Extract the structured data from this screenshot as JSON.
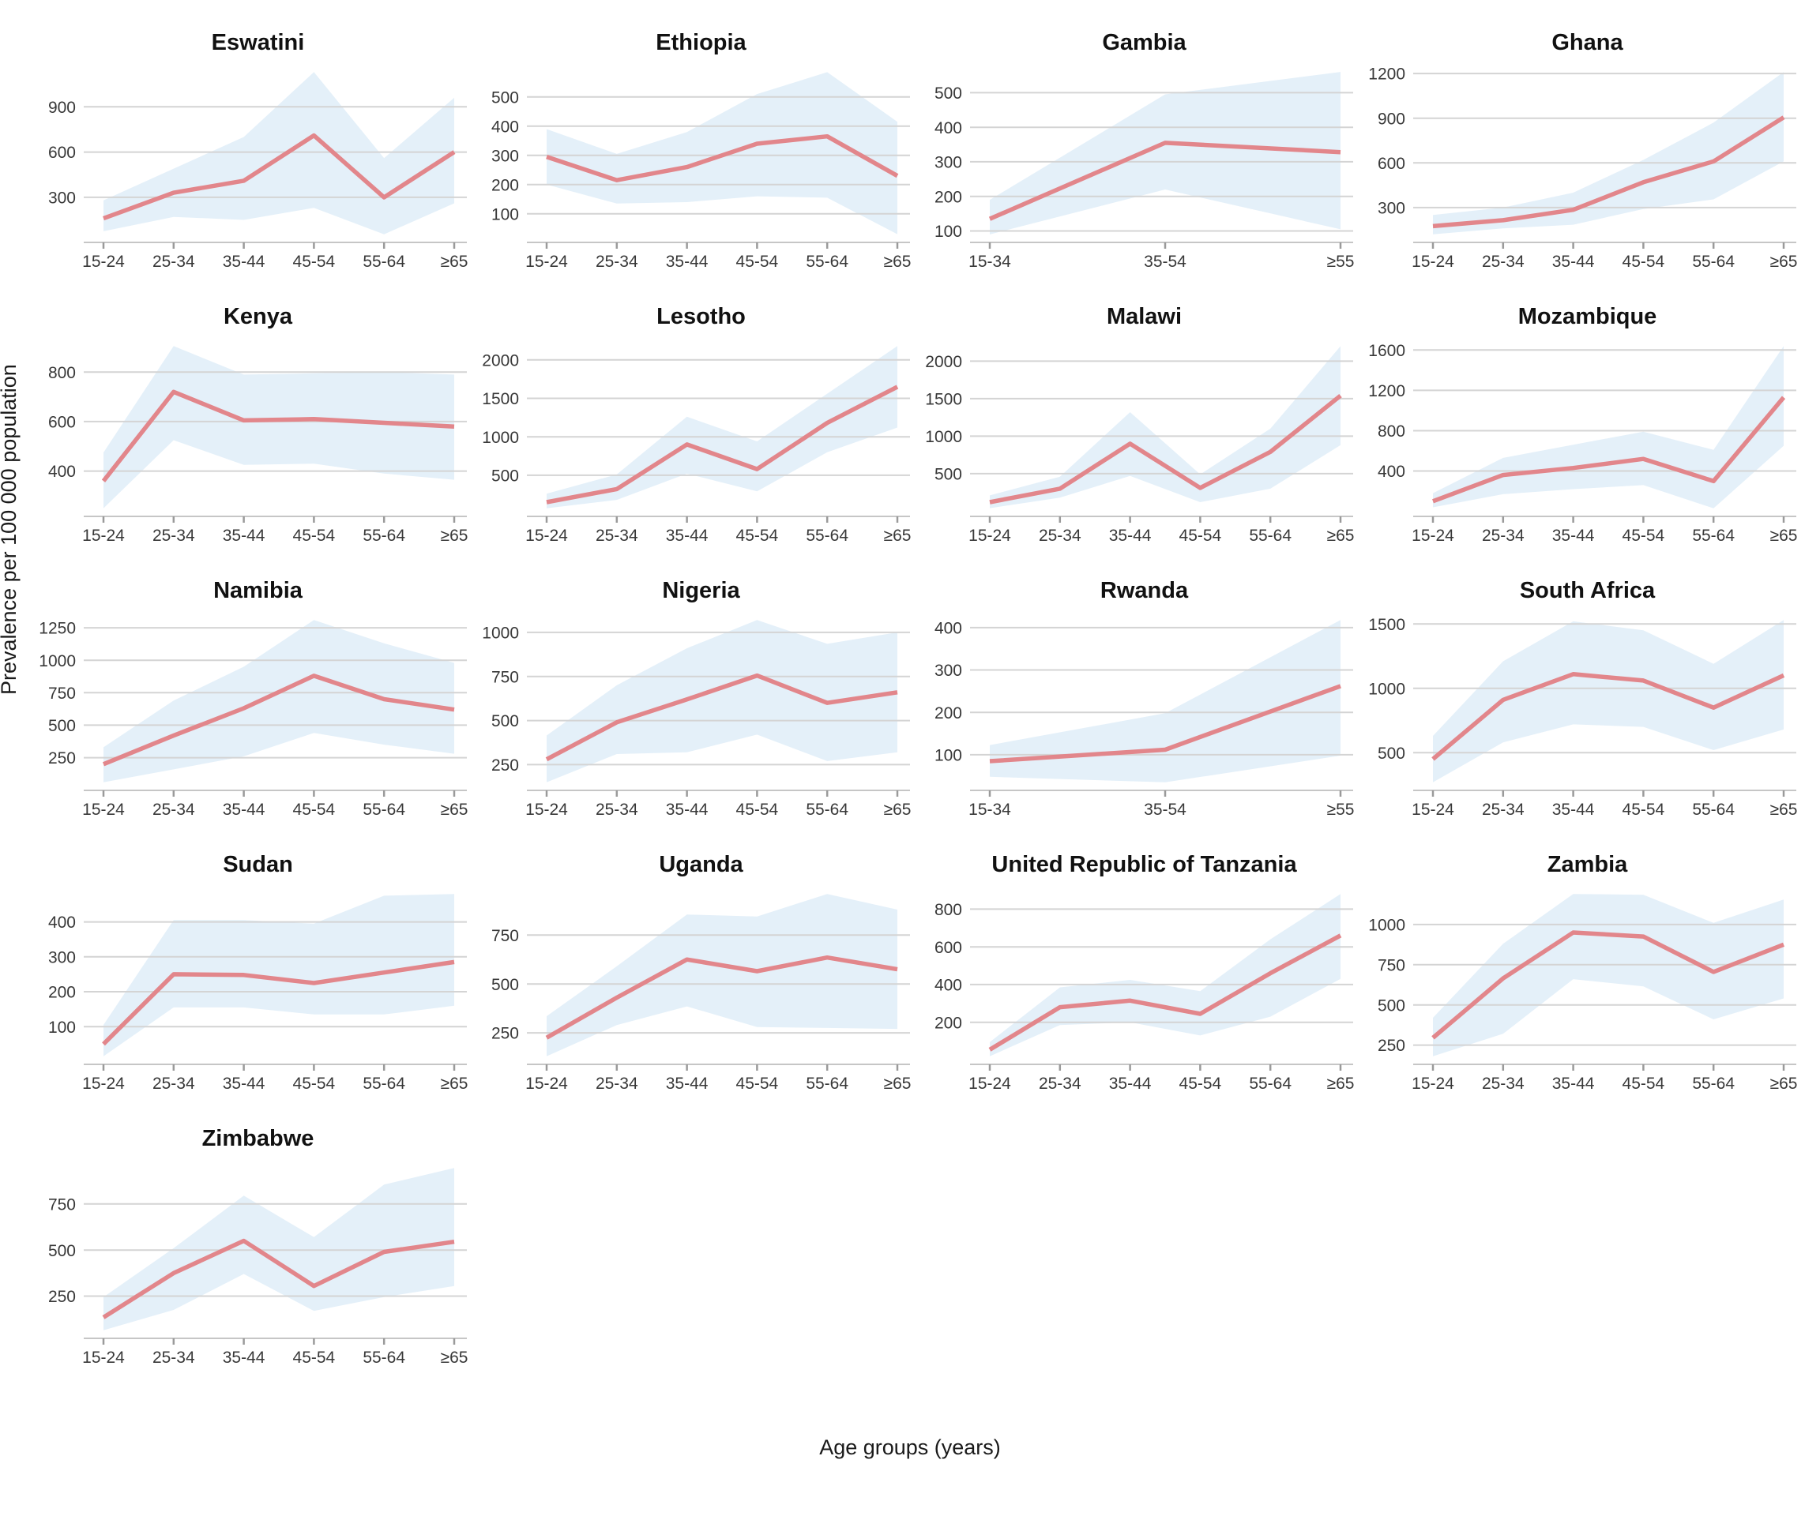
{
  "page": {
    "ylabel": "Prevalence per 100 000 population",
    "xlabel": "Age groups (years)"
  },
  "style": {
    "line_color": "#e2868b",
    "band_color": "#e4f0f9",
    "grid_color": "#d4d4d4",
    "axis_line_color": "#c6c6c6",
    "tick_mark_color": "#9a9a9a",
    "tick_label_color": "#383838",
    "title_color": "#111111",
    "background": "#ffffff"
  },
  "chart_data": [
    {
      "type": "line",
      "title": "Eswatini",
      "categories": [
        "15-24",
        "25-34",
        "35-44",
        "45-54",
        "55-64",
        "≥65"
      ],
      "yticks": [
        300,
        600,
        900
      ],
      "ylim": [
        1,
        1184
      ],
      "series": [
        {
          "name": "prevalence",
          "values": [
            160,
            330,
            410,
            710,
            300,
            600
          ]
        },
        {
          "name": "lower_ci",
          "values": [
            75,
            170,
            150,
            230,
            55,
            260
          ]
        },
        {
          "name": "upper_ci",
          "values": [
            280,
            490,
            700,
            1130,
            560,
            960
          ]
        }
      ]
    },
    {
      "type": "line",
      "title": "Ethiopia",
      "categories": [
        "15-24",
        "25-34",
        "35-44",
        "45-54",
        "55-64",
        "≥65"
      ],
      "yticks": [
        100,
        200,
        300,
        400,
        500
      ],
      "ylim": [
        2,
        613
      ],
      "series": [
        {
          "name": "prevalence",
          "values": [
            295,
            215,
            260,
            340,
            365,
            230
          ]
        },
        {
          "name": "lower_ci",
          "values": [
            200,
            135,
            140,
            160,
            155,
            30
          ]
        },
        {
          "name": "upper_ci",
          "values": [
            390,
            305,
            380,
            510,
            585,
            415
          ]
        }
      ]
    },
    {
      "type": "line",
      "title": "Gambia",
      "categories": [
        "15-34",
        "35-54",
        "≥55"
      ],
      "yticks": [
        100,
        200,
        300,
        400,
        500
      ],
      "ylim": [
        67,
        583
      ],
      "series": [
        {
          "name": "prevalence",
          "values": [
            135,
            355,
            328
          ]
        },
        {
          "name": "lower_ci",
          "values": [
            90,
            220,
            105
          ]
        },
        {
          "name": "upper_ci",
          "values": [
            190,
            495,
            560
          ]
        }
      ]
    },
    {
      "type": "line",
      "title": "Ghana",
      "categories": [
        "15-24",
        "25-34",
        "35-44",
        "45-54",
        "55-64",
        "≥65"
      ],
      "yticks": [
        300,
        600,
        900,
        1200
      ],
      "ylim": [
        66,
        1264
      ],
      "series": [
        {
          "name": "prevalence",
          "values": [
            175,
            215,
            285,
            470,
            610,
            905
          ]
        },
        {
          "name": "lower_ci",
          "values": [
            120,
            160,
            185,
            290,
            355,
            610
          ]
        },
        {
          "name": "upper_ci",
          "values": [
            250,
            300,
            400,
            620,
            870,
            1210
          ]
        }
      ]
    },
    {
      "type": "line",
      "title": "Kenya",
      "categories": [
        "15-24",
        "25-34",
        "35-44",
        "45-54",
        "55-64",
        "≥65"
      ],
      "yticks": [
        400,
        600,
        800
      ],
      "ylim": [
        217,
        938
      ],
      "series": [
        {
          "name": "prevalence",
          "values": [
            360,
            720,
            605,
            610,
            595,
            580
          ]
        },
        {
          "name": "lower_ci",
          "values": [
            250,
            525,
            425,
            430,
            390,
            365
          ]
        },
        {
          "name": "upper_ci",
          "values": [
            475,
            905,
            790,
            795,
            800,
            790
          ]
        }
      ]
    },
    {
      "type": "line",
      "title": "Lesotho",
      "categories": [
        "15-24",
        "25-34",
        "35-44",
        "45-54",
        "55-64",
        "≥65"
      ],
      "yticks": [
        500,
        1000,
        1500,
        2000
      ],
      "ylim": [
        -35,
        2285
      ],
      "series": [
        {
          "name": "prevalence",
          "values": [
            150,
            320,
            900,
            580,
            1180,
            1650
          ]
        },
        {
          "name": "lower_ci",
          "values": [
            70,
            180,
            520,
            290,
            800,
            1120
          ]
        },
        {
          "name": "upper_ci",
          "values": [
            260,
            510,
            1260,
            940,
            1560,
            2180
          ]
        }
      ]
    },
    {
      "type": "line",
      "title": "Malawi",
      "categories": [
        "15-24",
        "25-34",
        "35-44",
        "45-54",
        "55-64",
        "≥65"
      ],
      "yticks": [
        500,
        1000,
        1500,
        2000
      ],
      "ylim": [
        -70,
        2310
      ],
      "series": [
        {
          "name": "prevalence",
          "values": [
            120,
            300,
            900,
            310,
            790,
            1540
          ]
        },
        {
          "name": "lower_ci",
          "values": [
            40,
            180,
            470,
            120,
            300,
            880
          ]
        },
        {
          "name": "upper_ci",
          "values": [
            210,
            460,
            1320,
            490,
            1100,
            2200
          ]
        }
      ]
    },
    {
      "type": "line",
      "title": "Mozambique",
      "categories": [
        "15-24",
        "25-34",
        "35-44",
        "45-54",
        "55-64",
        "≥65"
      ],
      "yticks": [
        400,
        800,
        1200,
        1600
      ],
      "ylim": [
        -50,
        1720
      ],
      "series": [
        {
          "name": "prevalence",
          "values": [
            100,
            360,
            430,
            520,
            300,
            1130
          ]
        },
        {
          "name": "lower_ci",
          "values": [
            40,
            170,
            220,
            260,
            30,
            650
          ]
        },
        {
          "name": "upper_ci",
          "values": [
            180,
            530,
            660,
            790,
            610,
            1640
          ]
        }
      ]
    },
    {
      "type": "line",
      "title": "Namibia",
      "categories": [
        "15-24",
        "25-34",
        "35-44",
        "45-54",
        "55-64",
        "≥65"
      ],
      "yticks": [
        250,
        500,
        750,
        1000,
        1250
      ],
      "ylim": [
        -2,
        1372
      ],
      "series": [
        {
          "name": "prevalence",
          "values": [
            200,
            420,
            630,
            880,
            700,
            620
          ]
        },
        {
          "name": "lower_ci",
          "values": [
            60,
            160,
            260,
            440,
            350,
            280
          ]
        },
        {
          "name": "upper_ci",
          "values": [
            330,
            690,
            950,
            1310,
            1130,
            980
          ]
        }
      ]
    },
    {
      "type": "line",
      "title": "Nigeria",
      "categories": [
        "15-24",
        "25-34",
        "35-44",
        "45-54",
        "55-64",
        "≥65"
      ],
      "yticks": [
        250,
        500,
        750,
        1000
      ],
      "ylim": [
        104,
        1116
      ],
      "series": [
        {
          "name": "prevalence",
          "values": [
            280,
            490,
            620,
            755,
            600,
            660
          ]
        },
        {
          "name": "lower_ci",
          "values": [
            150,
            310,
            320,
            420,
            270,
            320
          ]
        },
        {
          "name": "upper_ci",
          "values": [
            415,
            700,
            910,
            1070,
            935,
            1000
          ]
        }
      ]
    },
    {
      "type": "line",
      "title": "Rwanda",
      "categories": [
        "15-34",
        "35-54",
        "≥55"
      ],
      "yticks": [
        100,
        200,
        300,
        400
      ],
      "ylim": [
        16,
        437
      ],
      "series": [
        {
          "name": "prevalence",
          "values": [
            85,
            112,
            262
          ]
        },
        {
          "name": "lower_ci",
          "values": [
            48,
            35,
            98
          ]
        },
        {
          "name": "upper_ci",
          "values": [
            123,
            198,
            418
          ]
        }
      ]
    },
    {
      "type": "line",
      "title": "South Africa",
      "categories": [
        "15-24",
        "25-34",
        "35-44",
        "45-54",
        "55-64",
        "≥65"
      ],
      "yticks": [
        500,
        1000,
        1500
      ],
      "ylim": [
        207,
        1593
      ],
      "series": [
        {
          "name": "prevalence",
          "values": [
            450,
            910,
            1110,
            1060,
            850,
            1100
          ]
        },
        {
          "name": "lower_ci",
          "values": [
            270,
            580,
            720,
            700,
            520,
            680
          ]
        },
        {
          "name": "upper_ci",
          "values": [
            630,
            1210,
            1520,
            1450,
            1190,
            1530
          ]
        }
      ]
    },
    {
      "type": "line",
      "title": "Sudan",
      "categories": [
        "15-24",
        "25-34",
        "35-44",
        "45-54",
        "55-64",
        "≥65"
      ],
      "yticks": [
        100,
        200,
        300,
        400
      ],
      "ylim": [
        -8,
        503
      ],
      "series": [
        {
          "name": "prevalence",
          "values": [
            50,
            250,
            248,
            225,
            255,
            285
          ]
        },
        {
          "name": "lower_ci",
          "values": [
            15,
            155,
            155,
            135,
            135,
            160
          ]
        },
        {
          "name": "upper_ci",
          "values": [
            105,
            405,
            405,
            395,
            475,
            480
          ]
        }
      ]
    },
    {
      "type": "line",
      "title": "Uganda",
      "categories": [
        "15-24",
        "25-34",
        "35-44",
        "45-54",
        "55-64",
        "≥65"
      ],
      "yticks": [
        250,
        500,
        750
      ],
      "ylim": [
        89,
        1001
      ],
      "series": [
        {
          "name": "prevalence",
          "values": [
            225,
            430,
            625,
            565,
            635,
            575
          ]
        },
        {
          "name": "lower_ci",
          "values": [
            130,
            290,
            385,
            280,
            275,
            270
          ]
        },
        {
          "name": "upper_ci",
          "values": [
            335,
            590,
            855,
            845,
            960,
            880
          ]
        }
      ]
    },
    {
      "type": "line",
      "title": "United Republic of Tanzania",
      "categories": [
        "15-24",
        "25-34",
        "35-44",
        "45-54",
        "55-64",
        "≥65"
      ],
      "yticks": [
        200,
        400,
        600,
        800
      ],
      "ylim": [
        -23,
        923
      ],
      "series": [
        {
          "name": "prevalence",
          "values": [
            55,
            280,
            315,
            245,
            460,
            660
          ]
        },
        {
          "name": "lower_ci",
          "values": [
            20,
            185,
            200,
            130,
            230,
            430
          ]
        },
        {
          "name": "upper_ci",
          "values": [
            95,
            385,
            425,
            365,
            640,
            880
          ]
        }
      ]
    },
    {
      "type": "line",
      "title": "Zambia",
      "categories": [
        "15-24",
        "25-34",
        "35-44",
        "45-54",
        "55-64",
        "≥65"
      ],
      "yticks": [
        250,
        500,
        750,
        1000
      ],
      "ylim": [
        130,
        1240
      ],
      "series": [
        {
          "name": "prevalence",
          "values": [
            295,
            665,
            950,
            925,
            705,
            875
          ]
        },
        {
          "name": "lower_ci",
          "values": [
            180,
            320,
            660,
            615,
            410,
            540
          ]
        },
        {
          "name": "upper_ci",
          "values": [
            420,
            880,
            1190,
            1185,
            1010,
            1155
          ]
        }
      ]
    },
    {
      "type": "line",
      "title": "Zimbabwe",
      "categories": [
        "15-24",
        "25-34",
        "35-44",
        "45-54",
        "55-64",
        "≥65"
      ],
      "yticks": [
        250,
        500,
        750
      ],
      "ylim": [
        21,
        989
      ],
      "series": [
        {
          "name": "prevalence",
          "values": [
            135,
            375,
            550,
            305,
            490,
            545
          ]
        },
        {
          "name": "lower_ci",
          "values": [
            65,
            175,
            370,
            170,
            245,
            305
          ]
        },
        {
          "name": "upper_ci",
          "values": [
            245,
            510,
            795,
            570,
            855,
            945
          ]
        }
      ]
    }
  ]
}
